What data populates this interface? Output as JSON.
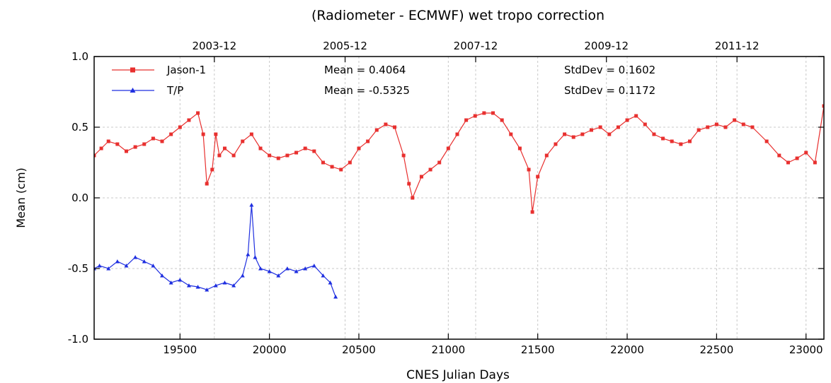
{
  "chart_data": {
    "type": "line",
    "title": "(Radiometer - ECMWF) wet tropo correction",
    "xlabel": "CNES Julian Days",
    "ylabel": "Mean (cm)",
    "xlim": [
      19020,
      23100
    ],
    "ylim": [
      -1.0,
      1.0
    ],
    "x_ticks": [
      19500,
      20000,
      20500,
      21000,
      21500,
      22000,
      22500,
      23000
    ],
    "y_ticks": [
      -1.0,
      -0.5,
      0.0,
      0.5,
      1.0
    ],
    "y_tick_labels": [
      "-1.0",
      "-0.5",
      "0.0",
      "0.5",
      "1.0"
    ],
    "top_axis_ticks": [
      {
        "label": "2003-12",
        "x": 19692
      },
      {
        "label": "2005-12",
        "x": 20423
      },
      {
        "label": "2007-12",
        "x": 21153
      },
      {
        "label": "2009-12",
        "x": 21884
      },
      {
        "label": "2011-12",
        "x": 22614
      }
    ],
    "grid": true,
    "legend_position": "top-left",
    "series": [
      {
        "name": "Jason-1",
        "color": "#e8302f",
        "marker": "square",
        "mean_label": "Mean = 0.4064",
        "stddev_label": "StdDev = 0.1602",
        "points": [
          [
            19020,
            0.3
          ],
          [
            19060,
            0.35
          ],
          [
            19100,
            0.4
          ],
          [
            19150,
            0.38
          ],
          [
            19200,
            0.33
          ],
          [
            19250,
            0.36
          ],
          [
            19300,
            0.38
          ],
          [
            19350,
            0.42
          ],
          [
            19400,
            0.4
          ],
          [
            19450,
            0.45
          ],
          [
            19500,
            0.5
          ],
          [
            19550,
            0.55
          ],
          [
            19600,
            0.6
          ],
          [
            19630,
            0.45
          ],
          [
            19650,
            0.1
          ],
          [
            19680,
            0.2
          ],
          [
            19700,
            0.45
          ],
          [
            19720,
            0.3
          ],
          [
            19750,
            0.35
          ],
          [
            19800,
            0.3
          ],
          [
            19850,
            0.4
          ],
          [
            19900,
            0.45
          ],
          [
            19950,
            0.35
          ],
          [
            20000,
            0.3
          ],
          [
            20050,
            0.28
          ],
          [
            20100,
            0.3
          ],
          [
            20150,
            0.32
          ],
          [
            20200,
            0.35
          ],
          [
            20250,
            0.33
          ],
          [
            20300,
            0.25
          ],
          [
            20350,
            0.22
          ],
          [
            20400,
            0.2
          ],
          [
            20450,
            0.25
          ],
          [
            20500,
            0.35
          ],
          [
            20550,
            0.4
          ],
          [
            20600,
            0.48
          ],
          [
            20650,
            0.52
          ],
          [
            20700,
            0.5
          ],
          [
            20750,
            0.3
          ],
          [
            20780,
            0.1
          ],
          [
            20800,
            0.0
          ],
          [
            20850,
            0.15
          ],
          [
            20900,
            0.2
          ],
          [
            20950,
            0.25
          ],
          [
            21000,
            0.35
          ],
          [
            21050,
            0.45
          ],
          [
            21100,
            0.55
          ],
          [
            21150,
            0.58
          ],
          [
            21200,
            0.6
          ],
          [
            21250,
            0.6
          ],
          [
            21300,
            0.55
          ],
          [
            21350,
            0.45
          ],
          [
            21400,
            0.35
          ],
          [
            21450,
            0.2
          ],
          [
            21470,
            -0.1
          ],
          [
            21500,
            0.15
          ],
          [
            21550,
            0.3
          ],
          [
            21600,
            0.38
          ],
          [
            21650,
            0.45
          ],
          [
            21700,
            0.43
          ],
          [
            21750,
            0.45
          ],
          [
            21800,
            0.48
          ],
          [
            21850,
            0.5
          ],
          [
            21900,
            0.45
          ],
          [
            21950,
            0.5
          ],
          [
            22000,
            0.55
          ],
          [
            22050,
            0.58
          ],
          [
            22100,
            0.52
          ],
          [
            22150,
            0.45
          ],
          [
            22200,
            0.42
          ],
          [
            22250,
            0.4
          ],
          [
            22300,
            0.38
          ],
          [
            22350,
            0.4
          ],
          [
            22400,
            0.48
          ],
          [
            22450,
            0.5
          ],
          [
            22500,
            0.52
          ],
          [
            22550,
            0.5
          ],
          [
            22600,
            0.55
          ],
          [
            22650,
            0.52
          ],
          [
            22700,
            0.5
          ],
          [
            22780,
            0.4
          ],
          [
            22850,
            0.3
          ],
          [
            22900,
            0.25
          ],
          [
            22950,
            0.28
          ],
          [
            23000,
            0.32
          ],
          [
            23050,
            0.25
          ],
          [
            23100,
            0.65
          ]
        ]
      },
      {
        "name": "T/P",
        "color": "#1f2fe0",
        "marker": "triangle",
        "mean_label": "Mean = -0.5325",
        "stddev_label": "StdDev = 0.1172",
        "points": [
          [
            19020,
            -0.5
          ],
          [
            19050,
            -0.48
          ],
          [
            19100,
            -0.5
          ],
          [
            19150,
            -0.45
          ],
          [
            19200,
            -0.48
          ],
          [
            19250,
            -0.42
          ],
          [
            19300,
            -0.45
          ],
          [
            19350,
            -0.48
          ],
          [
            19400,
            -0.55
          ],
          [
            19450,
            -0.6
          ],
          [
            19500,
            -0.58
          ],
          [
            19550,
            -0.62
          ],
          [
            19600,
            -0.63
          ],
          [
            19650,
            -0.65
          ],
          [
            19700,
            -0.62
          ],
          [
            19750,
            -0.6
          ],
          [
            19800,
            -0.62
          ],
          [
            19850,
            -0.55
          ],
          [
            19880,
            -0.4
          ],
          [
            19900,
            -0.05
          ],
          [
            19920,
            -0.42
          ],
          [
            19950,
            -0.5
          ],
          [
            20000,
            -0.52
          ],
          [
            20050,
            -0.55
          ],
          [
            20100,
            -0.5
          ],
          [
            20150,
            -0.52
          ],
          [
            20200,
            -0.5
          ],
          [
            20250,
            -0.48
          ],
          [
            20300,
            -0.55
          ],
          [
            20340,
            -0.6
          ],
          [
            20370,
            -0.7
          ]
        ]
      }
    ]
  }
}
